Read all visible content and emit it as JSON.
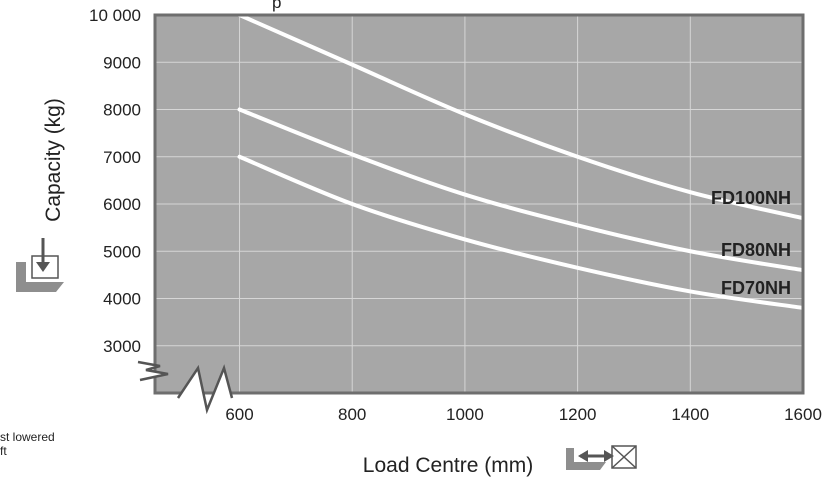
{
  "chart_data": {
    "type": "line",
    "xlabel": "Load Centre (mm)",
    "ylabel": "Capacity (kg)",
    "xlim": [
      450,
      1600
    ],
    "ylim": [
      2000,
      10000
    ],
    "x_ticks": [
      600,
      800,
      1000,
      1200,
      1400,
      1600
    ],
    "x_tick_labels": [
      "600",
      "800",
      "1000",
      "1200",
      "1400",
      "1600"
    ],
    "y_ticks": [
      3000,
      4000,
      5000,
      6000,
      7000,
      8000,
      9000,
      10000
    ],
    "y_tick_labels": [
      "3000",
      "4000",
      "5000",
      "6000",
      "7000",
      "8000",
      "9000",
      "10 000"
    ],
    "grid": true,
    "axis_break": true,
    "series": [
      {
        "name": "FD100NH",
        "x": [
          600,
          800,
          1000,
          1200,
          1400,
          1600
        ],
        "y": [
          10000,
          8950,
          7900,
          7000,
          6250,
          5700
        ]
      },
      {
        "name": "FD80NH",
        "x": [
          600,
          800,
          1000,
          1200,
          1400,
          1600
        ],
        "y": [
          8000,
          7050,
          6200,
          5550,
          5000,
          4600
        ]
      },
      {
        "name": "FD70NH",
        "x": [
          600,
          800,
          1000,
          1200,
          1400,
          1600
        ],
        "y": [
          7000,
          6000,
          5250,
          4650,
          4150,
          3800
        ]
      }
    ],
    "colors": {
      "plot_bg": "#a7a7a7",
      "frame": "#6e6e6e",
      "grid": "#d6d6d6",
      "line": "#ffffff",
      "text": "#222222"
    }
  },
  "partial_text": {
    "top_fragment": "p",
    "footnote_line1": "st lowered",
    "footnote_line2": "ft"
  },
  "icons": {
    "capacity_icon": "load-down-arrow-icon",
    "load_centre_icon": "load-centre-arrow-icon"
  }
}
